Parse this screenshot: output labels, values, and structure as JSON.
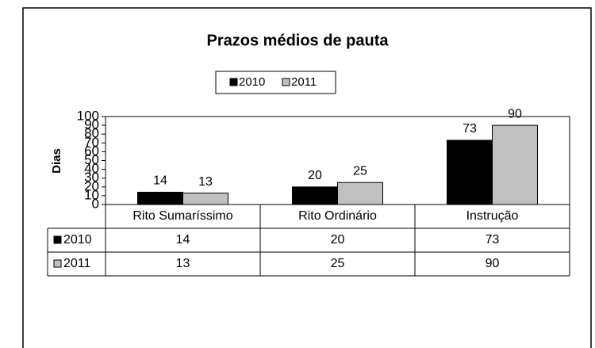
{
  "chart_data": {
    "type": "bar",
    "title": "Prazos médios de pauta",
    "y_label": "Dias",
    "categories": [
      "Rito Sumaríssimo",
      "Rito Ordinário",
      "Instrução"
    ],
    "series": [
      {
        "name": "2010",
        "color": "#000000",
        "values": [
          14,
          20,
          73
        ]
      },
      {
        "name": "2011",
        "color": "#c0c0c0",
        "values": [
          13,
          25,
          90
        ]
      }
    ],
    "ylim": [
      0,
      100
    ],
    "yticks": [
      0,
      10,
      20,
      30,
      40,
      50,
      60,
      70,
      80,
      90,
      100
    ],
    "grid": false,
    "legend": "top",
    "data_table": true
  }
}
